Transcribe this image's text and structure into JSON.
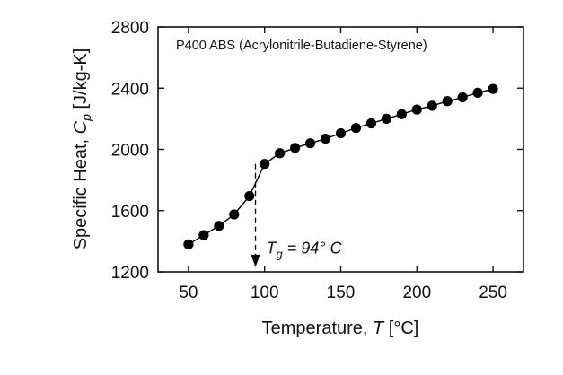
{
  "chart_data": {
    "type": "line",
    "title": "P400 ABS (Acrylonitrile-Butadiene-Styrene)",
    "xlabel": {
      "prefix": "Temperature, ",
      "symbol": "T",
      "unit": " [°C]"
    },
    "ylabel": {
      "prefix": "Specific Heat, ",
      "symbol": "C",
      "subscript": "p",
      "unit": " [J/kg-K]"
    },
    "xlim": [
      30,
      270
    ],
    "ylim": [
      1200,
      2800
    ],
    "xticks": [
      50,
      100,
      150,
      200,
      250
    ],
    "yticks": [
      1200,
      1600,
      2000,
      2400,
      2800
    ],
    "grid": false,
    "series": [
      {
        "x": [
          50,
          60,
          70,
          80,
          90,
          100,
          110,
          120,
          130,
          140,
          150,
          160,
          170,
          180,
          190,
          200,
          210,
          220,
          230,
          240,
          250
        ],
        "y": [
          1380,
          1440,
          1500,
          1575,
          1695,
          1905,
          1975,
          2010,
          2040,
          2070,
          2105,
          2140,
          2170,
          2200,
          2230,
          2260,
          2285,
          2315,
          2340,
          2370,
          2395
        ],
        "marker": "filled-circle",
        "color": "#000000"
      }
    ],
    "annotations": [
      {
        "symbol": "T",
        "subscript": "g",
        "text": " = 94° C",
        "x": 94,
        "arrow_from_y": 1905,
        "arrow_to_y": 1230,
        "style": "dashed-arrow-down"
      }
    ]
  }
}
